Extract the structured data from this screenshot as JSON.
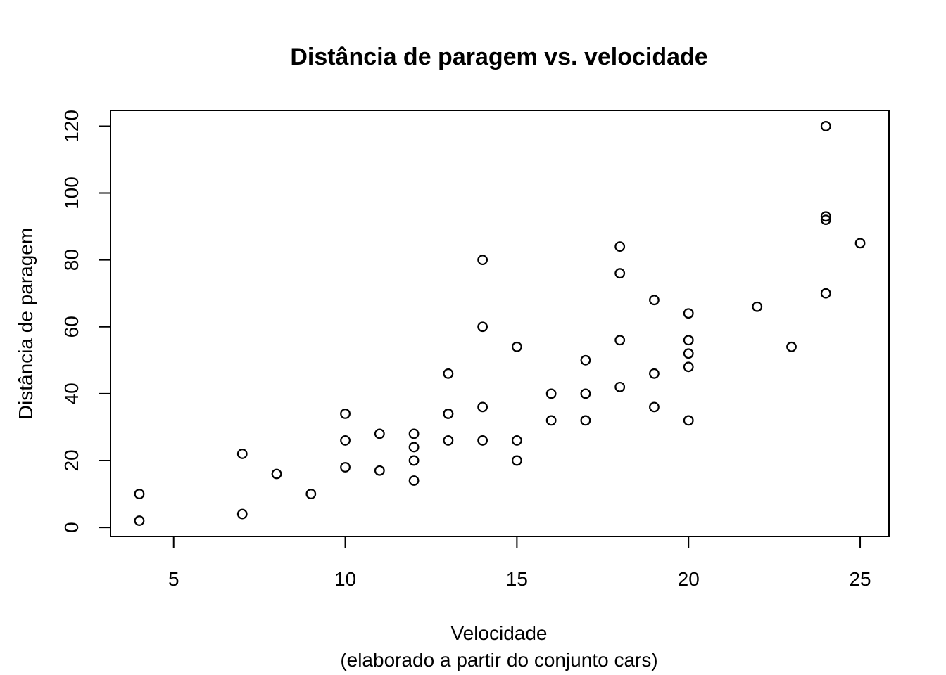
{
  "chart_data": {
    "type": "scatter",
    "title": "Distância de paragem vs. velocidade",
    "xlabel": "Velocidade",
    "xlabel_sub": "(elaborado a partir do conjunto cars)",
    "ylabel": "Distância de paragem",
    "xlim": [
      4,
      25
    ],
    "ylim": [
      2,
      120
    ],
    "x_ticks": [
      5,
      10,
      15,
      20,
      25
    ],
    "y_ticks": [
      0,
      20,
      40,
      60,
      80,
      100,
      120
    ],
    "marker": "open-circle",
    "grid": false,
    "points": [
      {
        "x": 4,
        "y": 2
      },
      {
        "x": 4,
        "y": 10
      },
      {
        "x": 7,
        "y": 4
      },
      {
        "x": 7,
        "y": 22
      },
      {
        "x": 8,
        "y": 16
      },
      {
        "x": 9,
        "y": 10
      },
      {
        "x": 10,
        "y": 18
      },
      {
        "x": 10,
        "y": 26
      },
      {
        "x": 10,
        "y": 34
      },
      {
        "x": 11,
        "y": 17
      },
      {
        "x": 11,
        "y": 28
      },
      {
        "x": 12,
        "y": 14
      },
      {
        "x": 12,
        "y": 20
      },
      {
        "x": 12,
        "y": 24
      },
      {
        "x": 12,
        "y": 28
      },
      {
        "x": 13,
        "y": 26
      },
      {
        "x": 13,
        "y": 34
      },
      {
        "x": 13,
        "y": 34
      },
      {
        "x": 13,
        "y": 46
      },
      {
        "x": 14,
        "y": 26
      },
      {
        "x": 14,
        "y": 36
      },
      {
        "x": 14,
        "y": 60
      },
      {
        "x": 14,
        "y": 80
      },
      {
        "x": 15,
        "y": 20
      },
      {
        "x": 15,
        "y": 26
      },
      {
        "x": 15,
        "y": 54
      },
      {
        "x": 16,
        "y": 32
      },
      {
        "x": 16,
        "y": 40
      },
      {
        "x": 17,
        "y": 32
      },
      {
        "x": 17,
        "y": 40
      },
      {
        "x": 17,
        "y": 50
      },
      {
        "x": 18,
        "y": 42
      },
      {
        "x": 18,
        "y": 56
      },
      {
        "x": 18,
        "y": 76
      },
      {
        "x": 18,
        "y": 84
      },
      {
        "x": 19,
        "y": 36
      },
      {
        "x": 19,
        "y": 46
      },
      {
        "x": 19,
        "y": 68
      },
      {
        "x": 20,
        "y": 32
      },
      {
        "x": 20,
        "y": 48
      },
      {
        "x": 20,
        "y": 52
      },
      {
        "x": 20,
        "y": 56
      },
      {
        "x": 20,
        "y": 64
      },
      {
        "x": 22,
        "y": 66
      },
      {
        "x": 23,
        "y": 54
      },
      {
        "x": 24,
        "y": 70
      },
      {
        "x": 24,
        "y": 92
      },
      {
        "x": 24,
        "y": 93
      },
      {
        "x": 24,
        "y": 120
      },
      {
        "x": 25,
        "y": 85
      }
    ]
  }
}
